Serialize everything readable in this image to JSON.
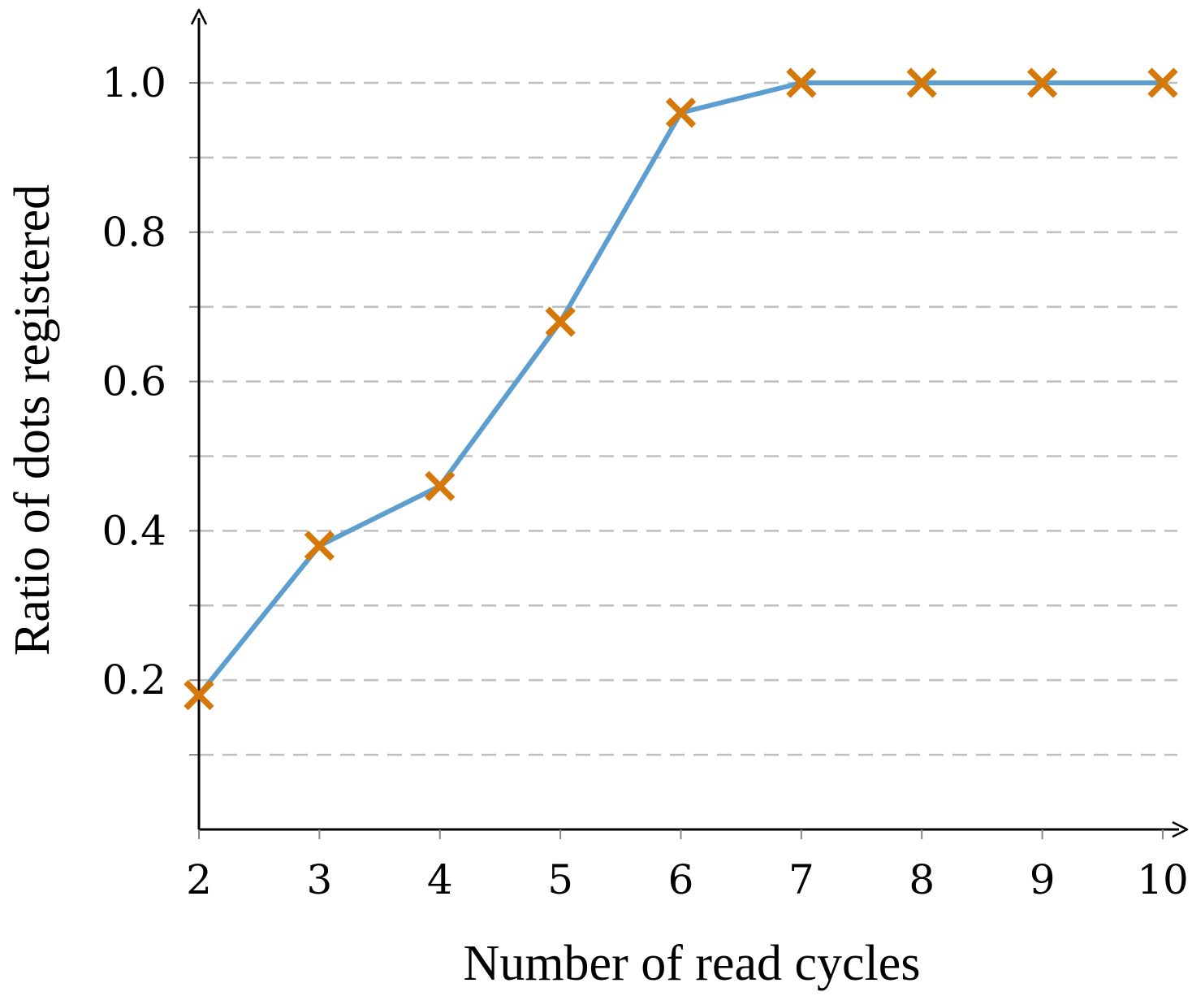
{
  "chart_data": {
    "type": "line",
    "title": "",
    "xlabel": "Number of read cycles",
    "ylabel": "Ratio of dots registered",
    "x": [
      2,
      3,
      4,
      5,
      6,
      7,
      8,
      9,
      10
    ],
    "series": [
      {
        "values": [
          0.18,
          0.38,
          0.46,
          0.68,
          0.96,
          1.0,
          1.0,
          1.0,
          1.0
        ],
        "line_color": "#5b9ecf",
        "marker": "x",
        "marker_color": "#d4780a"
      }
    ],
    "xticks": [
      "2",
      "3",
      "4",
      "5",
      "6",
      "7",
      "8",
      "9",
      "10"
    ],
    "yticks": [
      "0.2",
      "0.4",
      "0.6",
      "0.8",
      "1.0"
    ],
    "xlim": [
      2,
      10
    ],
    "ylim": [
      0,
      1.0
    ],
    "grid": "horizontal dashed at every 0.1",
    "legend": "none",
    "colors": {
      "axis": "#000000",
      "grid": "#c0c0c0"
    }
  }
}
